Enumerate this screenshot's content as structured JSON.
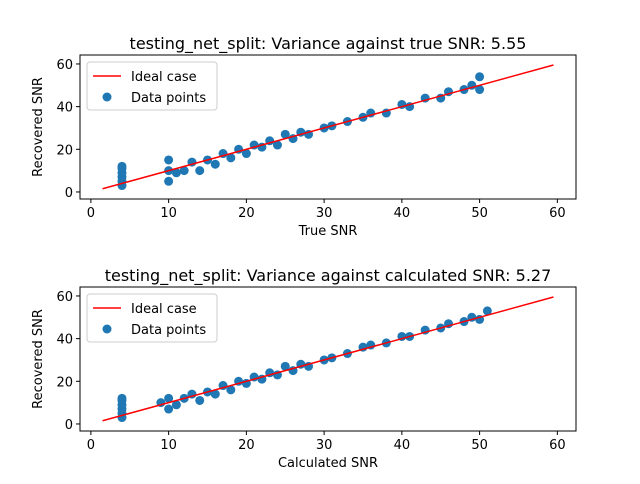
{
  "chart_data": [
    {
      "type": "scatter",
      "title": "testing_net_split: Variance against true SNR: 5.55",
      "xlabel": "True SNR",
      "ylabel": "Recovered SNR",
      "xlim": [
        -1.4,
        62.4
      ],
      "ylim": [
        -3.3,
        64.2
      ],
      "xticks": [
        0,
        10,
        20,
        30,
        40,
        50,
        60
      ],
      "yticks": [
        0,
        20,
        40,
        60
      ],
      "legend": "upper left",
      "series": [
        {
          "name": "Ideal case",
          "type": "line",
          "color": "#ff0000",
          "x": [
            1.5,
            59.5
          ],
          "values": [
            1.5,
            59.5
          ]
        },
        {
          "name": "Data points",
          "type": "scatter",
          "color": "#1f77b4",
          "x": [
            4,
            4,
            4,
            4,
            4,
            4,
            10,
            10,
            10,
            11,
            12,
            13,
            14,
            15,
            16,
            17,
            18,
            19,
            20,
            21,
            22,
            23,
            24,
            25,
            26,
            27,
            28,
            30,
            31,
            33,
            35,
            36,
            38,
            40,
            41,
            43,
            45,
            46,
            48,
            49,
            50,
            50
          ],
          "values": [
            3,
            5,
            7,
            9,
            11,
            12,
            5,
            10,
            15,
            9,
            10,
            14,
            10,
            15,
            13,
            18,
            16,
            20,
            18,
            22,
            21,
            24,
            22,
            27,
            25,
            28,
            27,
            30,
            31,
            33,
            35,
            37,
            37,
            41,
            40,
            44,
            44,
            47,
            48,
            50,
            48,
            54
          ]
        }
      ]
    },
    {
      "type": "scatter",
      "title": "testing_net_split: Variance against calculated SNR: 5.27",
      "xlabel": "Calculated SNR",
      "ylabel": "Recovered SNR",
      "xlim": [
        -1.4,
        62.4
      ],
      "ylim": [
        -3.3,
        64.2
      ],
      "xticks": [
        0,
        10,
        20,
        30,
        40,
        50,
        60
      ],
      "yticks": [
        0,
        20,
        40,
        60
      ],
      "legend": "upper left",
      "series": [
        {
          "name": "Ideal case",
          "type": "line",
          "color": "#ff0000",
          "x": [
            1.5,
            59.5
          ],
          "values": [
            1.5,
            59.5
          ]
        },
        {
          "name": "Data points",
          "type": "scatter",
          "color": "#1f77b4",
          "x": [
            4,
            4,
            4,
            4,
            4,
            4,
            9,
            10,
            10,
            11,
            12,
            13,
            14,
            15,
            16,
            17,
            18,
            19,
            20,
            21,
            22,
            23,
            24,
            25,
            26,
            27,
            28,
            30,
            31,
            33,
            35,
            36,
            38,
            40,
            41,
            43,
            45,
            46,
            48,
            49,
            50,
            51
          ],
          "values": [
            3,
            5,
            7,
            9,
            11,
            12,
            10,
            7,
            12,
            9,
            12,
            14,
            11,
            15,
            14,
            18,
            16,
            20,
            19,
            22,
            21,
            24,
            23,
            27,
            25,
            28,
            27,
            30,
            31,
            33,
            36,
            37,
            38,
            41,
            41,
            44,
            45,
            47,
            48,
            50,
            49,
            53
          ]
        }
      ]
    }
  ]
}
